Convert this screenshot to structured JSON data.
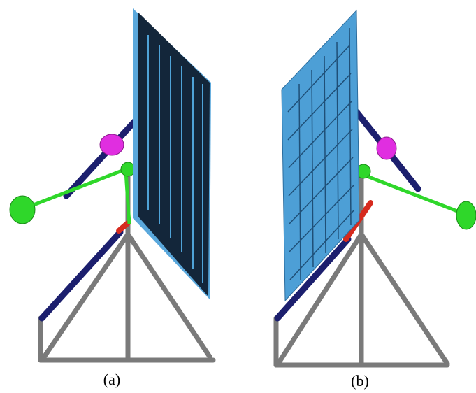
{
  "captions": [
    "(a)",
    "(b)"
  ]
}
